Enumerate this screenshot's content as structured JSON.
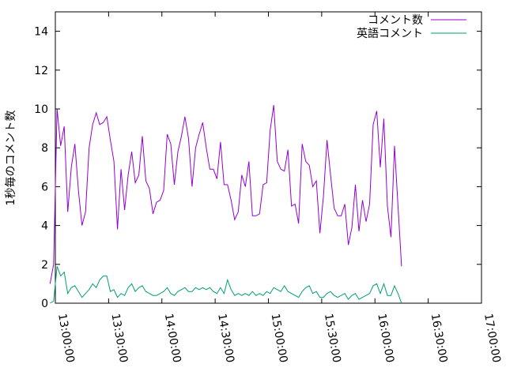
{
  "chart_data": {
    "type": "line",
    "title": "",
    "xlabel": "",
    "ylabel": "1秒毎のコメント数",
    "xlim": [
      "13:00:00",
      "17:00:00"
    ],
    "ylim": [
      0,
      15
    ],
    "x_ticks": [
      "13:00:00",
      "13:30:00",
      "14:00:00",
      "14:30:00",
      "15:00:00",
      "15:30:00",
      "16:00:00",
      "16:30:00",
      "17:00:00"
    ],
    "y_ticks": [
      "0",
      "2",
      "4",
      "6",
      "8",
      "10",
      "12",
      "14"
    ],
    "grid": false,
    "legend_position": "top-right",
    "x_start": "12:57:00",
    "x_step": "00:02:00",
    "series": [
      {
        "name": "コメント数",
        "color": "#9400d3",
        "values": [
          1.0,
          2.0,
          10.0,
          8.1,
          9.1,
          4.7,
          7.0,
          8.2,
          5.8,
          4.0,
          4.7,
          8.0,
          9.2,
          9.8,
          9.2,
          9.3,
          9.6,
          8.4,
          7.3,
          3.8,
          6.9,
          4.8,
          6.6,
          7.8,
          6.2,
          6.6,
          8.6,
          6.3,
          5.9,
          4.6,
          5.2,
          5.3,
          5.8,
          8.7,
          8.2,
          6.1,
          7.8,
          8.6,
          9.6,
          8.5,
          6.0,
          8.0,
          8.7,
          9.3,
          8.0,
          6.9,
          6.9,
          6.4,
          8.3,
          6.1,
          6.1,
          5.3,
          4.3,
          4.7,
          6.6,
          6.0,
          7.3,
          4.5,
          4.5,
          4.6,
          6.1,
          6.2,
          8.9,
          10.2,
          7.3,
          6.9,
          6.8,
          7.9,
          5.0,
          5.1,
          4.1,
          8.2,
          7.3,
          7.1,
          6.0,
          6.3,
          3.6,
          5.5,
          8.4,
          6.6,
          4.9,
          4.5,
          4.5,
          5.1,
          3.0,
          3.9,
          6.1,
          3.7,
          5.3,
          4.2,
          5.1,
          9.2,
          9.9,
          7.0,
          9.5,
          5.0,
          3.4,
          8.1,
          5.0,
          1.9
        ]
      },
      {
        "name": "英語コメント",
        "color": "#009e73",
        "values": [
          0.0,
          0.1,
          1.9,
          1.4,
          1.6,
          0.5,
          0.8,
          0.9,
          0.6,
          0.3,
          0.5,
          0.7,
          1.0,
          0.8,
          1.2,
          1.4,
          1.4,
          0.6,
          0.7,
          0.3,
          0.5,
          0.4,
          0.8,
          1.0,
          0.6,
          0.8,
          0.9,
          0.6,
          0.5,
          0.4,
          0.4,
          0.5,
          0.6,
          0.8,
          0.5,
          0.4,
          0.6,
          0.7,
          0.8,
          0.6,
          0.6,
          0.8,
          0.7,
          0.8,
          0.7,
          0.8,
          0.6,
          0.5,
          0.8,
          0.5,
          1.2,
          0.7,
          0.4,
          0.5,
          0.4,
          0.5,
          0.4,
          0.6,
          0.4,
          0.5,
          0.4,
          0.6,
          0.5,
          0.8,
          0.7,
          0.6,
          0.9,
          0.6,
          0.5,
          0.4,
          0.3,
          0.6,
          0.8,
          0.9,
          0.5,
          0.6,
          0.3,
          0.3,
          0.5,
          0.6,
          0.4,
          0.3,
          0.4,
          0.5,
          0.2,
          0.4,
          0.5,
          0.2,
          0.3,
          0.4,
          0.5,
          0.9,
          1.0,
          0.5,
          1.0,
          0.4,
          0.4,
          0.9,
          0.5,
          0.0
        ]
      }
    ]
  }
}
